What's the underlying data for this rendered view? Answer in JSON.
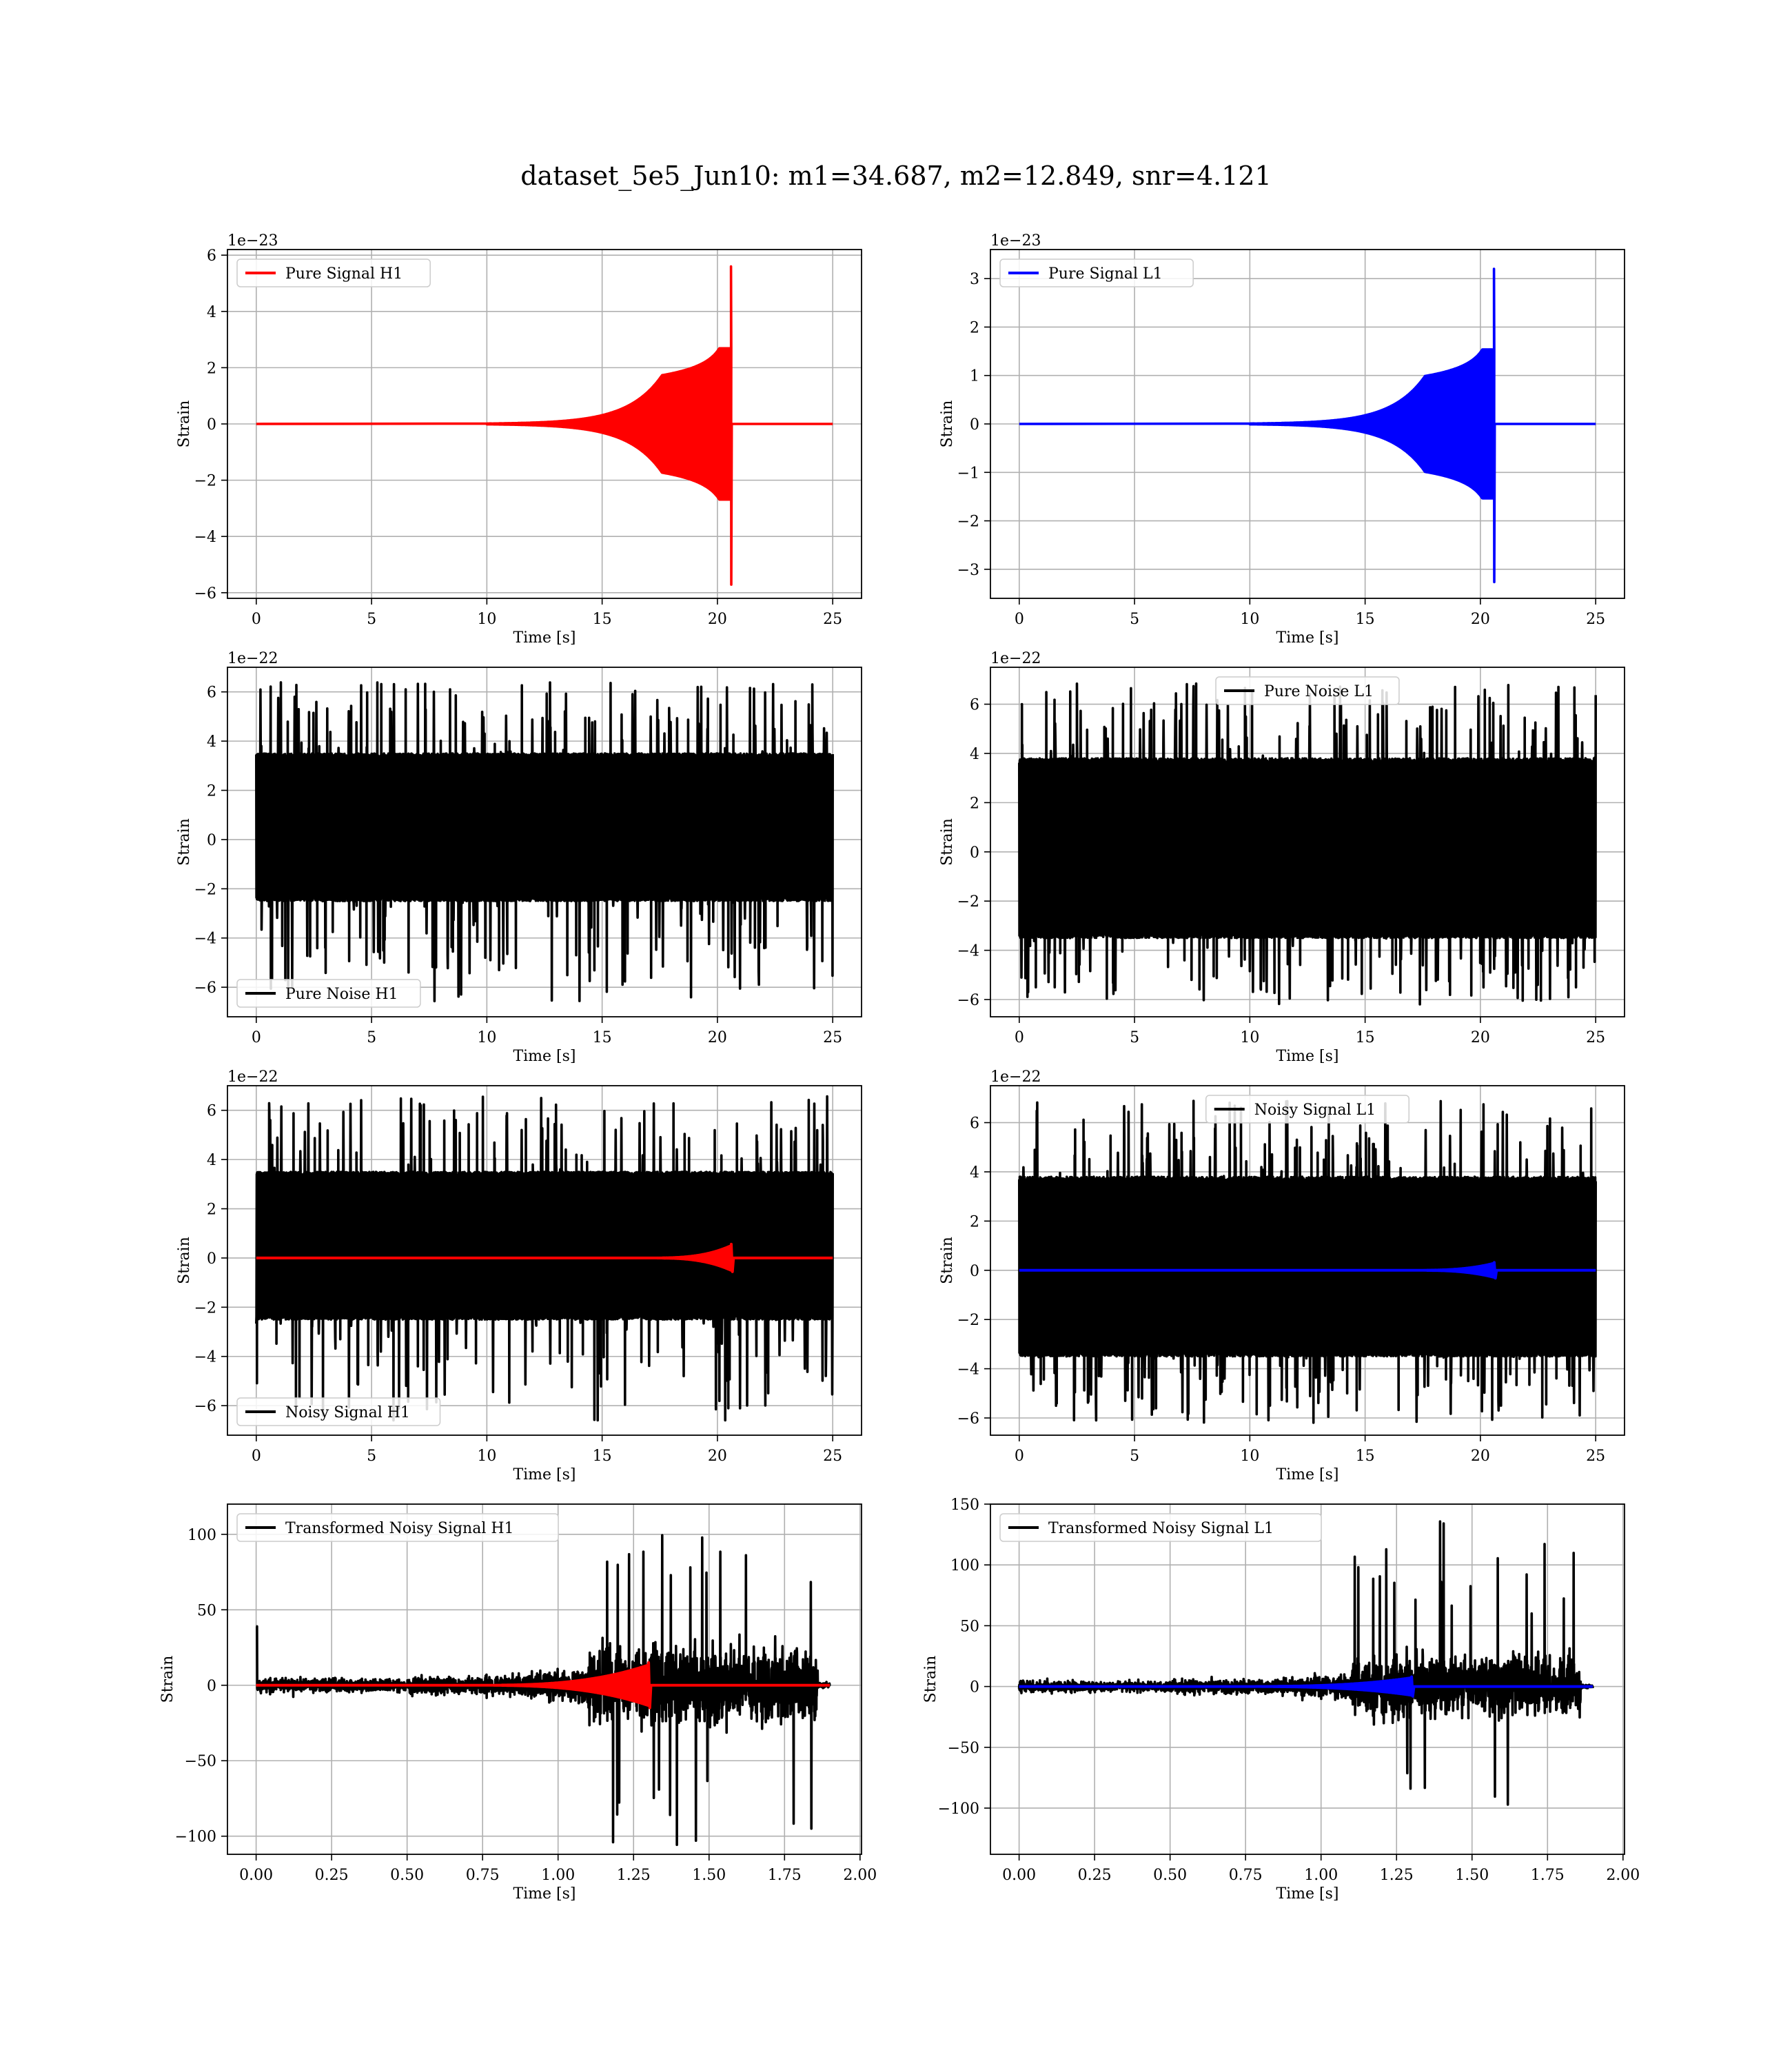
{
  "figure": {
    "title": "dataset_5e5_Jun10: m1=34.687, m2=12.849, snr=4.121"
  },
  "chart_data": [
    {
      "type": "line",
      "kind": "chirp",
      "xlabel": "Time [s]",
      "ylabel": "Strain",
      "offset_text": "1e−23",
      "xlim": [
        -1.25,
        26.25
      ],
      "ylim": [
        -6.2,
        6.2
      ],
      "xticks": [
        0,
        5,
        10,
        15,
        20,
        25
      ],
      "yticks": [
        -6,
        -4,
        -2,
        0,
        2,
        4,
        6
      ],
      "legend_loc": "upper-left",
      "series": [
        {
          "name": "Pure Signal H1",
          "color": "#ff0000",
          "x_range": [
            0,
            25
          ],
          "merger_time": 20.6,
          "peak_amplitude": 5.6
        }
      ]
    },
    {
      "type": "line",
      "kind": "chirp",
      "xlabel": "Time [s]",
      "ylabel": "Strain",
      "offset_text": "1e−23",
      "xlim": [
        -1.25,
        26.25
      ],
      "ylim": [
        -3.6,
        3.6
      ],
      "xticks": [
        0,
        5,
        10,
        15,
        20,
        25
      ],
      "yticks": [
        -3,
        -2,
        -1,
        0,
        1,
        2,
        3
      ],
      "legend_loc": "upper-left",
      "series": [
        {
          "name": "Pure Signal L1",
          "color": "#0000ff",
          "x_range": [
            0,
            25
          ],
          "merger_time": 20.6,
          "peak_amplitude": 3.2
        }
      ]
    },
    {
      "type": "line",
      "kind": "noise",
      "xlabel": "Time [s]",
      "ylabel": "Strain",
      "offset_text": "1e−22",
      "xlim": [
        -1.25,
        26.25
      ],
      "ylim": [
        -7.2,
        7.0
      ],
      "xticks": [
        0,
        5,
        10,
        15,
        20,
        25
      ],
      "yticks": [
        -6,
        -4,
        -2,
        0,
        2,
        4,
        6
      ],
      "legend_loc": "lower-left",
      "series": [
        {
          "name": "Pure Noise H1",
          "color": "#000000",
          "x_range": [
            0,
            25
          ],
          "center": -0.6,
          "band_top": 3.5,
          "band_bottom": -2.5,
          "max": 6.6,
          "min": -6.6
        }
      ]
    },
    {
      "type": "line",
      "kind": "noise",
      "xlabel": "Time [s]",
      "ylabel": "Strain",
      "offset_text": "1e−22",
      "xlim": [
        -1.25,
        26.25
      ],
      "ylim": [
        -6.7,
        7.5
      ],
      "xticks": [
        0,
        5,
        10,
        15,
        20,
        25
      ],
      "yticks": [
        -6,
        -4,
        -2,
        0,
        2,
        4,
        6
      ],
      "legend_loc": "upper-center",
      "series": [
        {
          "name": "Pure Noise L1",
          "color": "#000000",
          "x_range": [
            0,
            25
          ],
          "center": 0.5,
          "band_top": 3.8,
          "band_bottom": -3.5,
          "max": 6.9,
          "min": -6.2
        }
      ]
    },
    {
      "type": "line",
      "kind": "noisy_signal",
      "xlabel": "Time [s]",
      "ylabel": "Strain",
      "offset_text": "1e−22",
      "xlim": [
        -1.25,
        26.25
      ],
      "ylim": [
        -7.2,
        7.0
      ],
      "xticks": [
        0,
        5,
        10,
        15,
        20,
        25
      ],
      "yticks": [
        -6,
        -4,
        -2,
        0,
        2,
        4,
        6
      ],
      "legend_loc": "lower-left",
      "series": [
        {
          "name": "Noisy Signal H1",
          "color": "#000000",
          "x_range": [
            0,
            25
          ],
          "center": -0.6,
          "band_top": 3.5,
          "band_bottom": -2.5,
          "max": 6.6,
          "min": -6.6
        },
        {
          "color": "#ff0000",
          "x_range": [
            0,
            25
          ],
          "merger_time": 20.6,
          "peak_amplitude": 0.56
        }
      ]
    },
    {
      "type": "line",
      "kind": "noisy_signal",
      "xlabel": "Time [s]",
      "ylabel": "Strain",
      "offset_text": "1e−22",
      "xlim": [
        -1.25,
        26.25
      ],
      "ylim": [
        -6.7,
        7.5
      ],
      "xticks": [
        0,
        5,
        10,
        15,
        20,
        25
      ],
      "yticks": [
        -6,
        -4,
        -2,
        0,
        2,
        4,
        6
      ],
      "legend_loc": "upper-center",
      "series": [
        {
          "name": "Noisy Signal L1",
          "color": "#000000",
          "x_range": [
            0,
            25
          ],
          "center": 0.5,
          "band_top": 3.8,
          "band_bottom": -3.5,
          "max": 6.9,
          "min": -6.2
        },
        {
          "color": "#0000ff",
          "x_range": [
            0,
            25
          ],
          "merger_time": 20.6,
          "peak_amplitude": 0.32
        }
      ]
    },
    {
      "type": "line",
      "kind": "transformed",
      "xlabel": "Time [s]",
      "ylabel": "Strain",
      "offset_text": "",
      "xlim": [
        -0.095,
        2.005
      ],
      "ylim": [
        -112,
        120
      ],
      "xticks": [
        0.0,
        0.25,
        0.5,
        0.75,
        1.0,
        1.25,
        1.5,
        1.75,
        2.0
      ],
      "xtick_labels": [
        "0.00",
        "0.25",
        "0.50",
        "0.75",
        "1.00",
        "1.25",
        "1.50",
        "1.75",
        "2.00"
      ],
      "yticks": [
        -100,
        -50,
        0,
        50,
        100
      ],
      "legend_loc": "upper-left",
      "series": [
        {
          "name": "Transformed Noisy Signal H1",
          "color": "#000000",
          "x_range": [
            0,
            1.9
          ],
          "burst_start": 1.1,
          "burst_end": 1.86,
          "max": 111,
          "min": -110,
          "spike_at_start": 39
        },
        {
          "color": "#ff0000",
          "x_range": [
            0,
            1.9
          ],
          "merger_time": 1.3,
          "peak_amplitude": 15
        }
      ]
    },
    {
      "type": "line",
      "kind": "transformed",
      "xlabel": "Time [s]",
      "ylabel": "Strain",
      "offset_text": "",
      "xlim": [
        -0.095,
        2.005
      ],
      "ylim": [
        -138,
        150
      ],
      "xticks": [
        0.0,
        0.25,
        0.5,
        0.75,
        1.0,
        1.25,
        1.5,
        1.75,
        2.0
      ],
      "xtick_labels": [
        "0.00",
        "0.25",
        "0.50",
        "0.75",
        "1.00",
        "1.25",
        "1.50",
        "1.75",
        "2.00"
      ],
      "yticks": [
        -100,
        -50,
        0,
        50,
        100,
        150
      ],
      "legend_loc": "upper-left",
      "series": [
        {
          "name": "Transformed Noisy Signal L1",
          "color": "#000000",
          "x_range": [
            0,
            1.9
          ],
          "burst_start": 1.1,
          "burst_end": 1.86,
          "max": 137,
          "min": -125,
          "spike_at_start": 0
        },
        {
          "color": "#0000ff",
          "x_range": [
            0,
            1.9
          ],
          "merger_time": 1.3,
          "peak_amplitude": 8
        }
      ]
    }
  ]
}
